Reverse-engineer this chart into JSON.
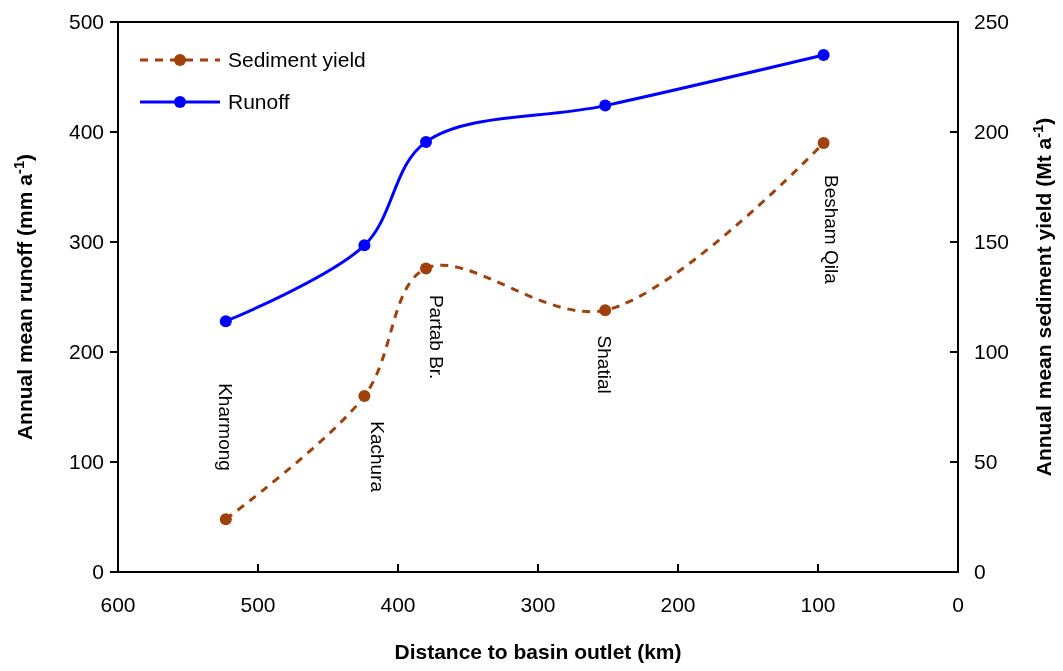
{
  "chart_data": {
    "type": "line",
    "xlabel": "Distance to basin outlet (km)",
    "ylabel": "Annual mean runoff (mm a$^{-1}$)",
    "y2label": "Annual mean sediment yield (Mt a$^{-1}$)",
    "x": [
      523,
      424,
      380,
      252,
      96
    ],
    "series": [
      {
        "name": "Sediment yield",
        "color": "#a0400a",
        "values": [
          24,
          80,
          138,
          119,
          195
        ],
        "axis": "y2",
        "line_style": "dashed"
      },
      {
        "name": "Runoff",
        "color": "#0000ff",
        "values": [
          228,
          297,
          391,
          424,
          470
        ],
        "line_style": "solid"
      }
    ],
    "xlim": [
      600,
      0
    ],
    "xticks": [
      600,
      500,
      400,
      300,
      200,
      100,
      0
    ],
    "ylim": [
      0,
      500
    ],
    "yticks": [
      0,
      100,
      200,
      300,
      400,
      500
    ],
    "y2lim": [
      0,
      250
    ],
    "y2ticks": [
      0,
      50,
      100,
      150,
      200,
      250
    ],
    "annotations": [
      "Kharmong",
      "Kachura",
      "Partab Br.",
      "Shatial",
      "Besham Qila"
    ],
    "legend": "top left",
    "marker": "circle",
    "grid": false
  }
}
